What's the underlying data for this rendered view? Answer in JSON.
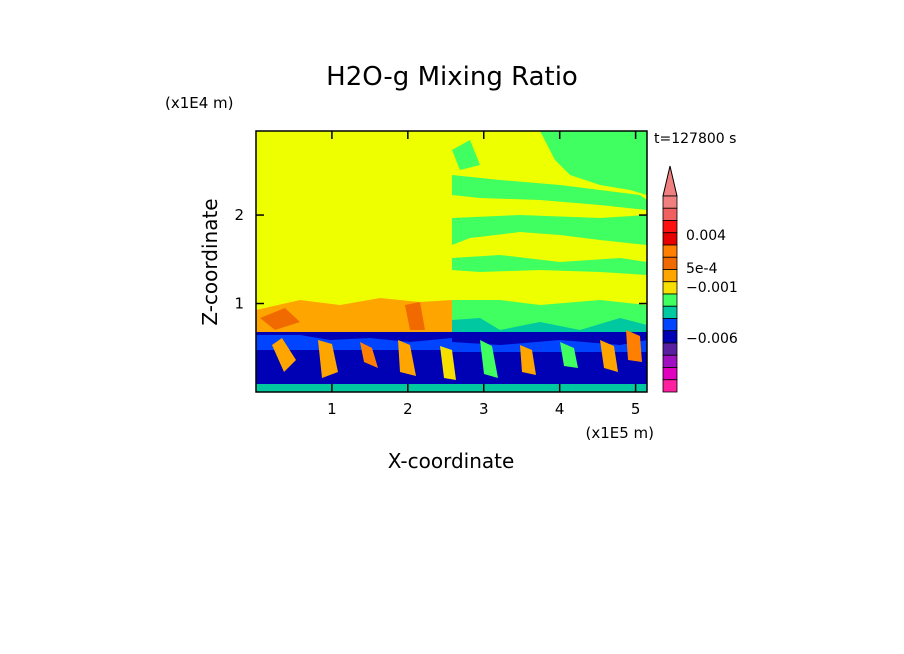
{
  "chart_data": {
    "type": "heatmap",
    "title": "H2O-g Mixing Ratio",
    "xlabel": "X-coordinate",
    "ylabel": "Z-coordinate",
    "x_unit": "(x1E5 m)",
    "y_unit": "(x1E4 m)",
    "time_label": "t=127800 s",
    "xlim": [
      0,
      5.15
    ],
    "ylim": [
      0,
      2.95
    ],
    "x_ticks": [
      1,
      2,
      3,
      4,
      5
    ],
    "y_ticks": [
      1,
      2
    ],
    "colorbar": {
      "labels": [
        {
          "text": "0.004",
          "value": 0.004
        },
        {
          "text": "5e-4",
          "value": 0.0005
        },
        {
          "text": "−0.001",
          "value": -0.001
        },
        {
          "text": "−0.006",
          "value": -0.006
        }
      ],
      "colors_top_to_bottom": [
        "#f08080",
        "#f06060",
        "#ff1010",
        "#e60000",
        "#ff8000",
        "#f06a00",
        "#ffa500",
        "#f7e000",
        "#40ff60",
        "#00c8a0",
        "#0044ff",
        "#0000b4",
        "#5a1ea0",
        "#9f10c0",
        "#e000c0",
        "#ff20a0"
      ],
      "extend": "max"
    },
    "regions": [
      {
        "x": [
          0,
          2.55
        ],
        "z": [
          0.72,
          2.95
        ],
        "value": "5e-4",
        "color": "#eeff00"
      },
      {
        "x": [
          2.55,
          5.15
        ],
        "z": [
          1.0,
          2.95
        ],
        "value": "mixed 5e-4 / 0",
        "color": "#40ff60"
      },
      {
        "x": [
          0,
          5.15
        ],
        "z": [
          0,
          0.72
        ],
        "value": "−0.001 to 0.004",
        "color": "#0000b4"
      }
    ]
  }
}
